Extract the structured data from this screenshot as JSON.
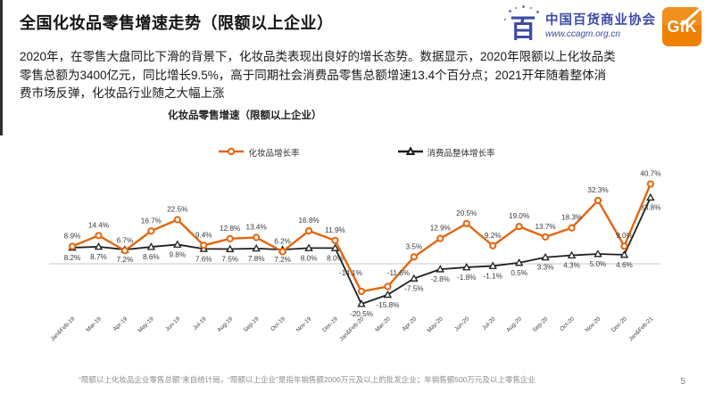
{
  "slide": {
    "title": "全国化妆品零售增速走势（限额以上企业）",
    "body_text": "2020年，在零售大盘同比下滑的背景下，化妆品类表现出良好的增长态势。数据显示，2020年限额以上化妆品类零售总额为3400亿元，同比增长9.5%，高于同期社会消费品零售总额增速13.4个百分点；2021开年随着整体消费市场反弹，化妆品行业随之大幅上涨",
    "footnote": "“限额以上化妆品企业零售总额”来自统计局，“限额以上企业”是指年销售额2000万元及以上的批发企业；年销售额500万元及以上零售企业",
    "page_number": "5"
  },
  "logos": {
    "association_mark": "百",
    "association_name": "中国百货商业协会",
    "association_url": "www.ccagm.org.cn",
    "association_color": "#3E4BA5",
    "gfk_label": "GfK",
    "gfk_color": "#F08000"
  },
  "chart_data": {
    "type": "line",
    "title": "化妆品零售增速（限额以上企业）",
    "legend_position": "top",
    "grid": false,
    "ylim": [
      -25,
      45
    ],
    "label_format": "percent",
    "categories": [
      "Jan&Feb-19",
      "Mar-19",
      "Apr-19",
      "May-19",
      "Jun-19",
      "Jul-19",
      "Aug-19",
      "Sep-19",
      "Oct-19",
      "Nov-19",
      "Dec-19",
      "Jan&Feb-20",
      "Mar-20",
      "Apr-20",
      "May-20",
      "Jun-20",
      "Jul-20",
      "Aug-20",
      "Sep-20",
      "Oct-20",
      "Nov-20",
      "Dec-20",
      "Jan&Feb-21"
    ],
    "series": [
      {
        "name": "化妆品增长率",
        "color": "#E3660E",
        "marker": "circle",
        "values": [
          8.9,
          14.4,
          6.7,
          16.7,
          22.5,
          9.4,
          12.8,
          13.4,
          6.2,
          16.8,
          11.9,
          -14.1,
          -11.6,
          3.5,
          12.9,
          20.5,
          9.2,
          19.0,
          13.7,
          18.3,
          32.3,
          9.0,
          40.7
        ]
      },
      {
        "name": "消费品整体增长率",
        "color": "#1F1F1F",
        "marker": "triangle",
        "values": [
          8.2,
          8.7,
          7.2,
          8.6,
          9.8,
          7.6,
          7.5,
          7.8,
          7.2,
          8.0,
          8.0,
          -20.5,
          -15.8,
          -7.5,
          -2.8,
          -1.8,
          -1.1,
          0.5,
          3.3,
          4.3,
          5.0,
          4.6,
          33.8
        ]
      }
    ]
  }
}
